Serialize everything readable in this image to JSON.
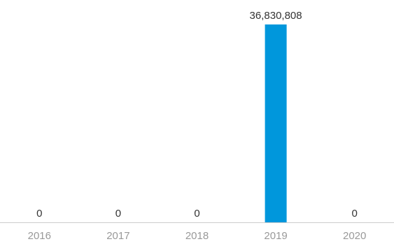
{
  "chart_data": {
    "type": "bar",
    "categories": [
      "2016",
      "2017",
      "2018",
      "2019",
      "2020"
    ],
    "values": [
      0,
      0,
      0,
      36830808,
      0
    ],
    "data_labels": [
      "0",
      "0",
      "0",
      "36,830,808",
      "0"
    ],
    "title": "",
    "xlabel": "",
    "ylabel": "",
    "ylim": [
      0,
      36830808
    ],
    "grid": false,
    "legend": "none",
    "colors": {
      "bar": "#0097dc",
      "axis": "#cccccc",
      "label": "#333333",
      "tick": "#999999"
    }
  }
}
